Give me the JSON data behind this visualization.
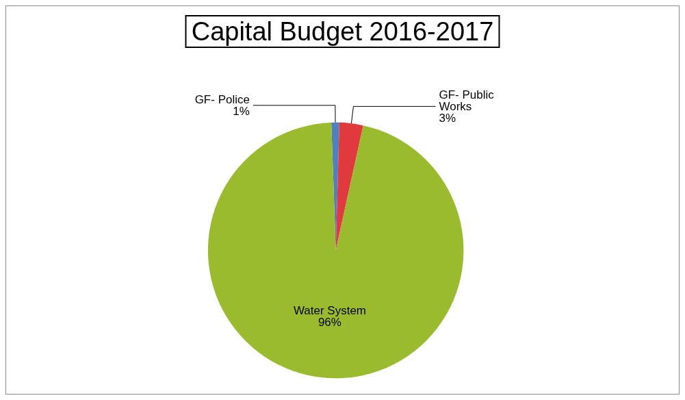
{
  "chart_data": {
    "type": "pie",
    "title": "Capital Budget 2016-2017",
    "categories": [
      "GF- Police",
      "GF- Public Works",
      "Water System"
    ],
    "values": [
      1,
      3,
      96
    ],
    "colors": [
      "#4f81bd",
      "#e0393e",
      "#9bbb2f"
    ],
    "value_labels": [
      "1%",
      "3%",
      "96%"
    ],
    "legend": false
  }
}
